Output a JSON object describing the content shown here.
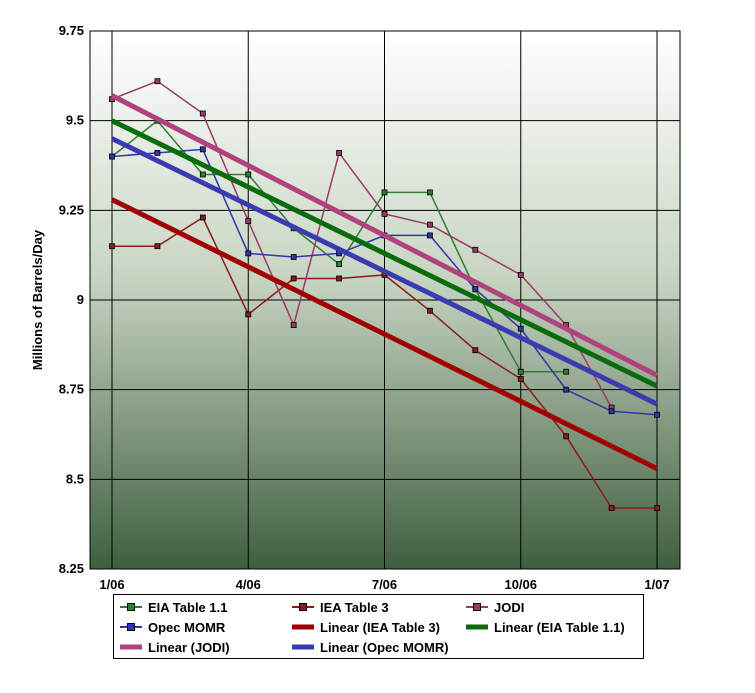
{
  "chart_data": {
    "type": "line",
    "title": "",
    "xlabel": "",
    "ylabel": "Millions of Barrels/Day",
    "ylim": [
      8.25,
      9.75
    ],
    "y_ticks": [
      "8.25",
      "8.5",
      "8.75",
      "9",
      "9.25",
      "9.5",
      "9.75"
    ],
    "x_tick_labels": [
      "1/06",
      "4/06",
      "7/06",
      "10/06",
      "1/07"
    ],
    "x": [
      "Jan 06",
      "Feb 06",
      "Mar 06",
      "Apr 06",
      "May 06",
      "Jun 06",
      "Jul 06",
      "Aug 06",
      "Sep 06",
      "Oct 06",
      "Nov 06",
      "Dec 06",
      "Jan 07"
    ],
    "grid": true,
    "legend_position": "bottom",
    "series": [
      {
        "name": "EIA Table 1.1",
        "color": "#2e7d32",
        "marker": true,
        "values": [
          9.4,
          9.5,
          9.35,
          9.35,
          9.2,
          9.1,
          9.3,
          9.3,
          9.03,
          8.8,
          8.8,
          null,
          null
        ]
      },
      {
        "name": "IEA Table 3",
        "color": "#8b1a1a",
        "marker": true,
        "values": [
          9.15,
          9.15,
          9.23,
          8.96,
          9.06,
          9.06,
          9.07,
          8.97,
          8.86,
          8.78,
          8.62,
          8.42,
          8.42
        ]
      },
      {
        "name": "JODI",
        "color": "#9b3a6a",
        "marker": true,
        "values": [
          9.56,
          9.61,
          9.52,
          9.22,
          8.93,
          9.41,
          9.24,
          9.21,
          9.14,
          9.07,
          8.93,
          8.7,
          null
        ]
      },
      {
        "name": "Opec MOMR",
        "color": "#3333aa",
        "marker": true,
        "values": [
          9.4,
          9.41,
          9.42,
          9.13,
          9.12,
          9.13,
          9.18,
          9.18,
          9.03,
          8.92,
          8.75,
          8.69,
          8.68
        ]
      },
      {
        "name": "Linear (IEA Table 3)",
        "color": "#a00000",
        "marker": false,
        "width": 5,
        "values": [
          9.28,
          null,
          null,
          null,
          null,
          null,
          null,
          null,
          null,
          null,
          null,
          null,
          8.53
        ]
      },
      {
        "name": "Linear (EIA Table 1.1)",
        "color": "#0a6b0a",
        "marker": false,
        "width": 5,
        "values": [
          9.5,
          null,
          null,
          null,
          null,
          null,
          null,
          null,
          null,
          null,
          null,
          null,
          8.76
        ]
      },
      {
        "name": "Linear (JODI)",
        "color": "#b0427e",
        "marker": false,
        "width": 5,
        "values": [
          9.57,
          null,
          null,
          null,
          null,
          null,
          null,
          null,
          null,
          null,
          null,
          null,
          8.79
        ]
      },
      {
        "name": "Linear (Opec MOMR)",
        "color": "#3b3bb0",
        "marker": false,
        "width": 5,
        "values": [
          9.45,
          null,
          null,
          null,
          null,
          null,
          null,
          null,
          null,
          null,
          null,
          null,
          8.71
        ]
      }
    ],
    "legend": [
      [
        "EIA Table 1.1",
        "IEA Table 3",
        "JODI"
      ],
      [
        "Opec MOMR",
        "Linear (IEA Table 3)",
        "Linear (EIA Table 1.1)"
      ],
      [
        "Linear (JODI)",
        "Linear (Opec MOMR)"
      ]
    ]
  }
}
